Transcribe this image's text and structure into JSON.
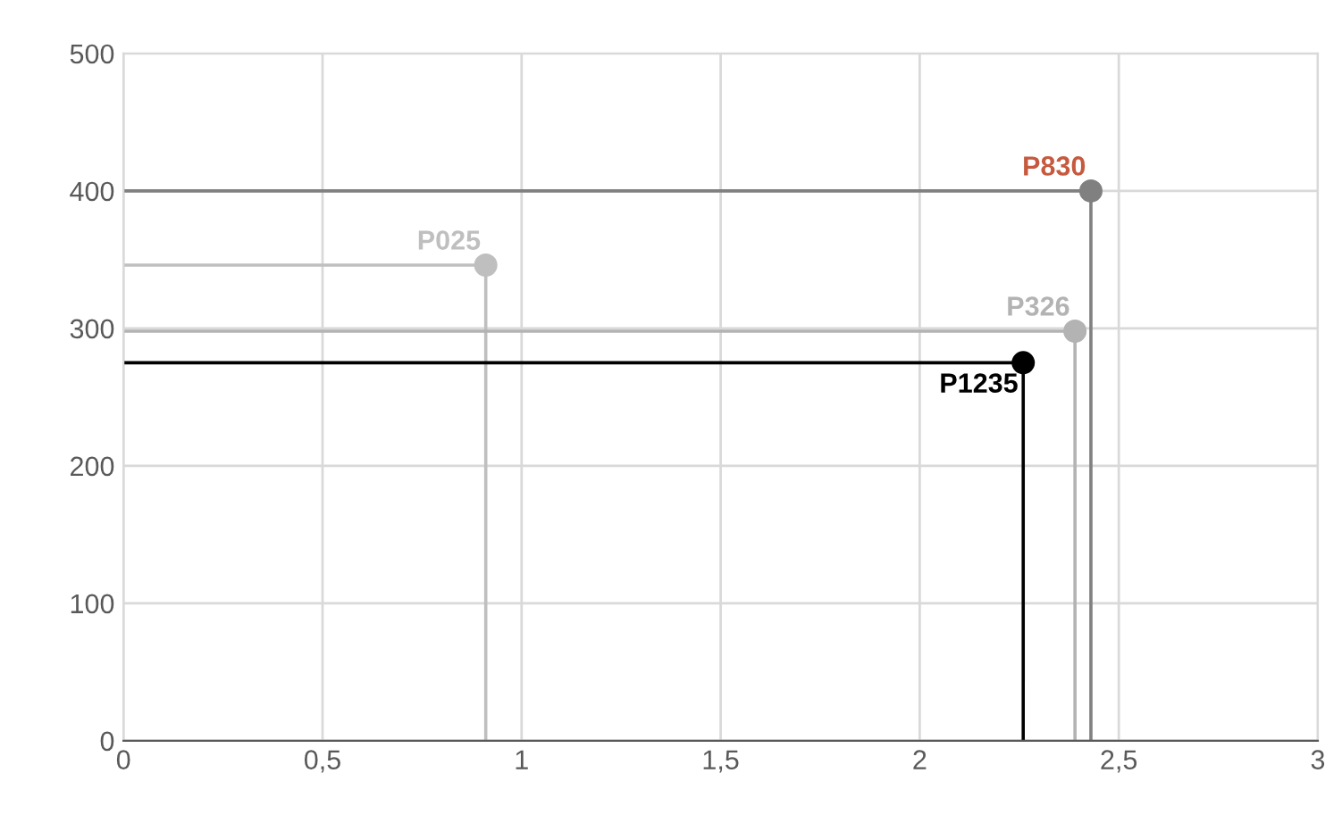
{
  "chart_data": {
    "type": "scatter",
    "series": [
      {
        "type": "line",
        "color": "#bfbfbf",
        "x": [
          0,
          0.91,
          0.91
        ],
        "values": [
          346,
          346,
          0
        ]
      },
      {
        "type": "line",
        "color": "#808080",
        "x": [
          0,
          2.43,
          2.43
        ],
        "values": [
          400,
          400,
          0
        ]
      },
      {
        "type": "line",
        "color": "#b3b3b3",
        "x": [
          0,
          2.39,
          2.39
        ],
        "values": [
          298,
          298,
          0
        ]
      },
      {
        "type": "line",
        "color": "#000000",
        "x": [
          0,
          2.26,
          2.26
        ],
        "values": [
          275,
          275,
          0
        ]
      },
      {
        "name": "P025",
        "color": "#bfbfbf",
        "x": [
          0.91
        ],
        "values": [
          346
        ],
        "marker": "circle"
      },
      {
        "name": "P830",
        "color": "#808080",
        "x": [
          2.43
        ],
        "values": [
          400
        ],
        "marker": "circle"
      },
      {
        "name": "P326",
        "color": "#b3b3b3",
        "x": [
          2.39
        ],
        "values": [
          298
        ],
        "marker": "circle"
      },
      {
        "name": "P1235",
        "color": "#000000",
        "x": [
          2.26
        ],
        "values": [
          275
        ],
        "marker": "circle"
      }
    ],
    "xlim": [
      0,
      3
    ],
    "xticks": [
      0,
      {
        "value": 0.5,
        "label": "0,5"
      },
      1,
      {
        "value": 1.5,
        "label": "1,5"
      },
      2,
      {
        "value": 2.5,
        "label": "2,5"
      },
      3
    ],
    "ylim": [
      0,
      500
    ],
    "yticks": [
      0,
      100,
      200,
      300,
      400,
      500
    ],
    "grid": true
  }
}
